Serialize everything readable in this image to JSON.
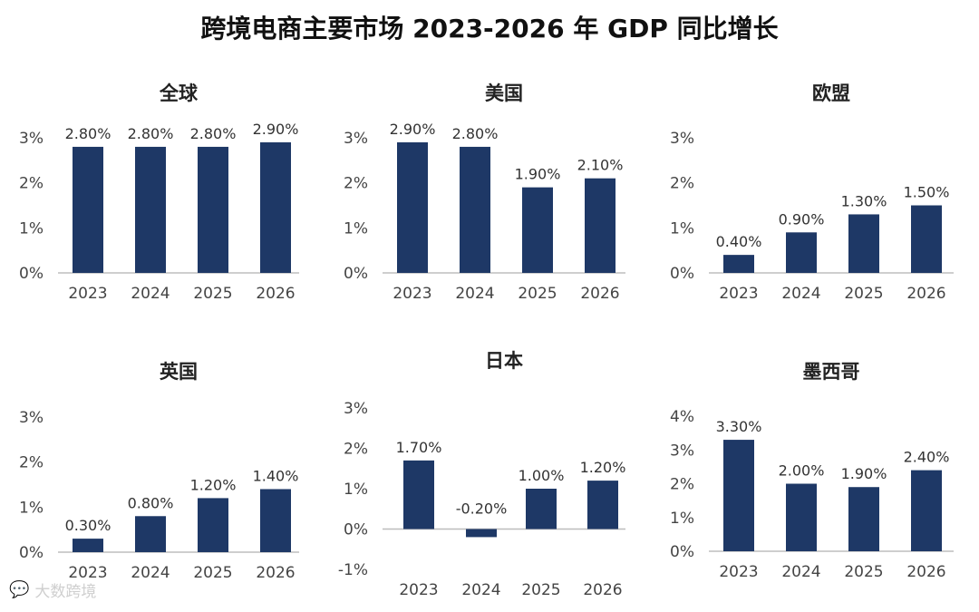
{
  "title": "跨境电商主要市场 2023-2026 年 GDP 同比增长",
  "watermark": {
    "icon": "chat-bubble-logo-icon",
    "text": "大数跨境"
  },
  "colors": {
    "bar": "#1e3866",
    "axis": "#bdbdbd",
    "text": "#444444",
    "label": "#333333",
    "subtitle": "#222222"
  },
  "chart_data": [
    {
      "type": "bar",
      "title": "全球",
      "categories": [
        "2023",
        "2024",
        "2025",
        "2026"
      ],
      "values": [
        2.8,
        2.8,
        2.8,
        2.9
      ],
      "value_labels": [
        "2.80%",
        "2.80%",
        "2.80%",
        "2.90%"
      ],
      "yticks": [
        "0%",
        "1%",
        "2%",
        "3%"
      ],
      "ylim": [
        0,
        3
      ],
      "unit": "%"
    },
    {
      "type": "bar",
      "title": "美国",
      "categories": [
        "2023",
        "2024",
        "2025",
        "2026"
      ],
      "values": [
        2.9,
        2.8,
        1.9,
        2.1
      ],
      "value_labels": [
        "2.90%",
        "2.80%",
        "1.90%",
        "2.10%"
      ],
      "yticks": [
        "0%",
        "1%",
        "2%",
        "3%"
      ],
      "ylim": [
        0,
        3
      ],
      "unit": "%"
    },
    {
      "type": "bar",
      "title": "欧盟",
      "categories": [
        "2023",
        "2024",
        "2025",
        "2026"
      ],
      "values": [
        0.4,
        0.9,
        1.3,
        1.5
      ],
      "value_labels": [
        "0.40%",
        "0.90%",
        "1.30%",
        "1.50%"
      ],
      "yticks": [
        "0%",
        "1%",
        "2%",
        "3%"
      ],
      "ylim": [
        0,
        3
      ],
      "unit": "%"
    },
    {
      "type": "bar",
      "title": "英国",
      "categories": [
        "2023",
        "2024",
        "2025",
        "2026"
      ],
      "values": [
        0.3,
        0.8,
        1.2,
        1.4
      ],
      "value_labels": [
        "0.30%",
        "0.80%",
        "1.20%",
        "1.40%"
      ],
      "yticks": [
        "0%",
        "1%",
        "2%",
        "3%"
      ],
      "ylim": [
        0,
        3
      ],
      "unit": "%"
    },
    {
      "type": "bar",
      "title": "日本",
      "categories": [
        "2023",
        "2024",
        "2025",
        "2026"
      ],
      "values": [
        1.7,
        -0.2,
        1.0,
        1.2
      ],
      "value_labels": [
        "1.70%",
        "-0.20%",
        "1.00%",
        "1.20%"
      ],
      "yticks": [
        "-1%",
        "0%",
        "1%",
        "2%",
        "3%"
      ],
      "ylim": [
        -1,
        3
      ],
      "unit": "%"
    },
    {
      "type": "bar",
      "title": "墨西哥",
      "categories": [
        "2023",
        "2024",
        "2025",
        "2026"
      ],
      "values": [
        3.3,
        2.0,
        1.9,
        2.4
      ],
      "value_labels": [
        "3.30%",
        "2.00%",
        "1.90%",
        "2.40%"
      ],
      "yticks": [
        "0%",
        "1%",
        "2%",
        "3%",
        "4%"
      ],
      "ylim": [
        0,
        4
      ],
      "unit": "%"
    }
  ]
}
